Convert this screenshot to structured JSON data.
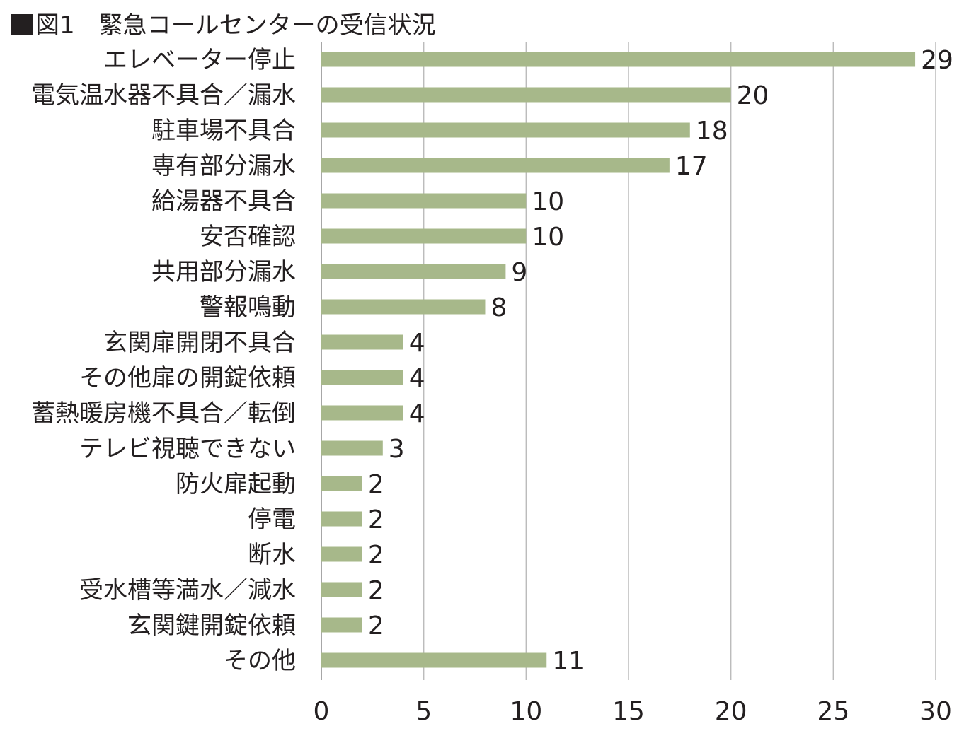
{
  "title": {
    "marker": "■",
    "text": "図1　緊急コールセンターの受信状況"
  },
  "chart_data": {
    "type": "bar",
    "orientation": "horizontal",
    "categories": [
      "エレベーター停止",
      "電気温水器不具合／漏水",
      "駐車場不具合",
      "専有部分漏水",
      "給湯器不具合",
      "安否確認",
      "共用部分漏水",
      "警報鳴動",
      "玄関扉開閉不具合",
      "その他扉の開錠依頼",
      "蓄熱暖房機不具合／転倒",
      "テレビ視聴できない",
      "防火扉起動",
      "停電",
      "断水",
      "受水槽等満水／減水",
      "玄関鍵開錠依頼",
      "その他"
    ],
    "values": [
      29,
      20,
      18,
      17,
      10,
      10,
      9,
      8,
      4,
      4,
      4,
      3,
      2,
      2,
      2,
      2,
      2,
      11
    ],
    "xlim": [
      0,
      30
    ],
    "xticks": [
      0,
      5,
      10,
      15,
      20,
      25,
      30
    ],
    "grid": true,
    "bar_color": "#a7b88a",
    "data_labels": true
  }
}
